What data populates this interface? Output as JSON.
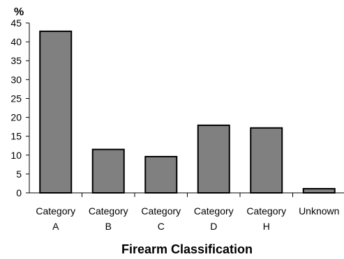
{
  "chart_data": {
    "type": "bar",
    "title": "",
    "ylabel": "%",
    "xlabel": "Firearm Classification",
    "categories": [
      [
        "Category",
        "A"
      ],
      [
        "Category",
        "B"
      ],
      [
        "Category",
        "C"
      ],
      [
        "Category",
        "D"
      ],
      [
        "Category",
        "H"
      ],
      [
        "Unknown"
      ]
    ],
    "values": [
      42.8,
      11.5,
      9.6,
      17.9,
      17.2,
      1.1
    ],
    "ylim": [
      0,
      45
    ],
    "yticks": [
      0,
      5,
      10,
      15,
      20,
      25,
      30,
      35,
      40,
      45
    ],
    "grid": false,
    "legend": "none",
    "colors": {
      "bar_fill": "#808080",
      "bar_stroke": "#000000",
      "axis": "#000000"
    }
  }
}
